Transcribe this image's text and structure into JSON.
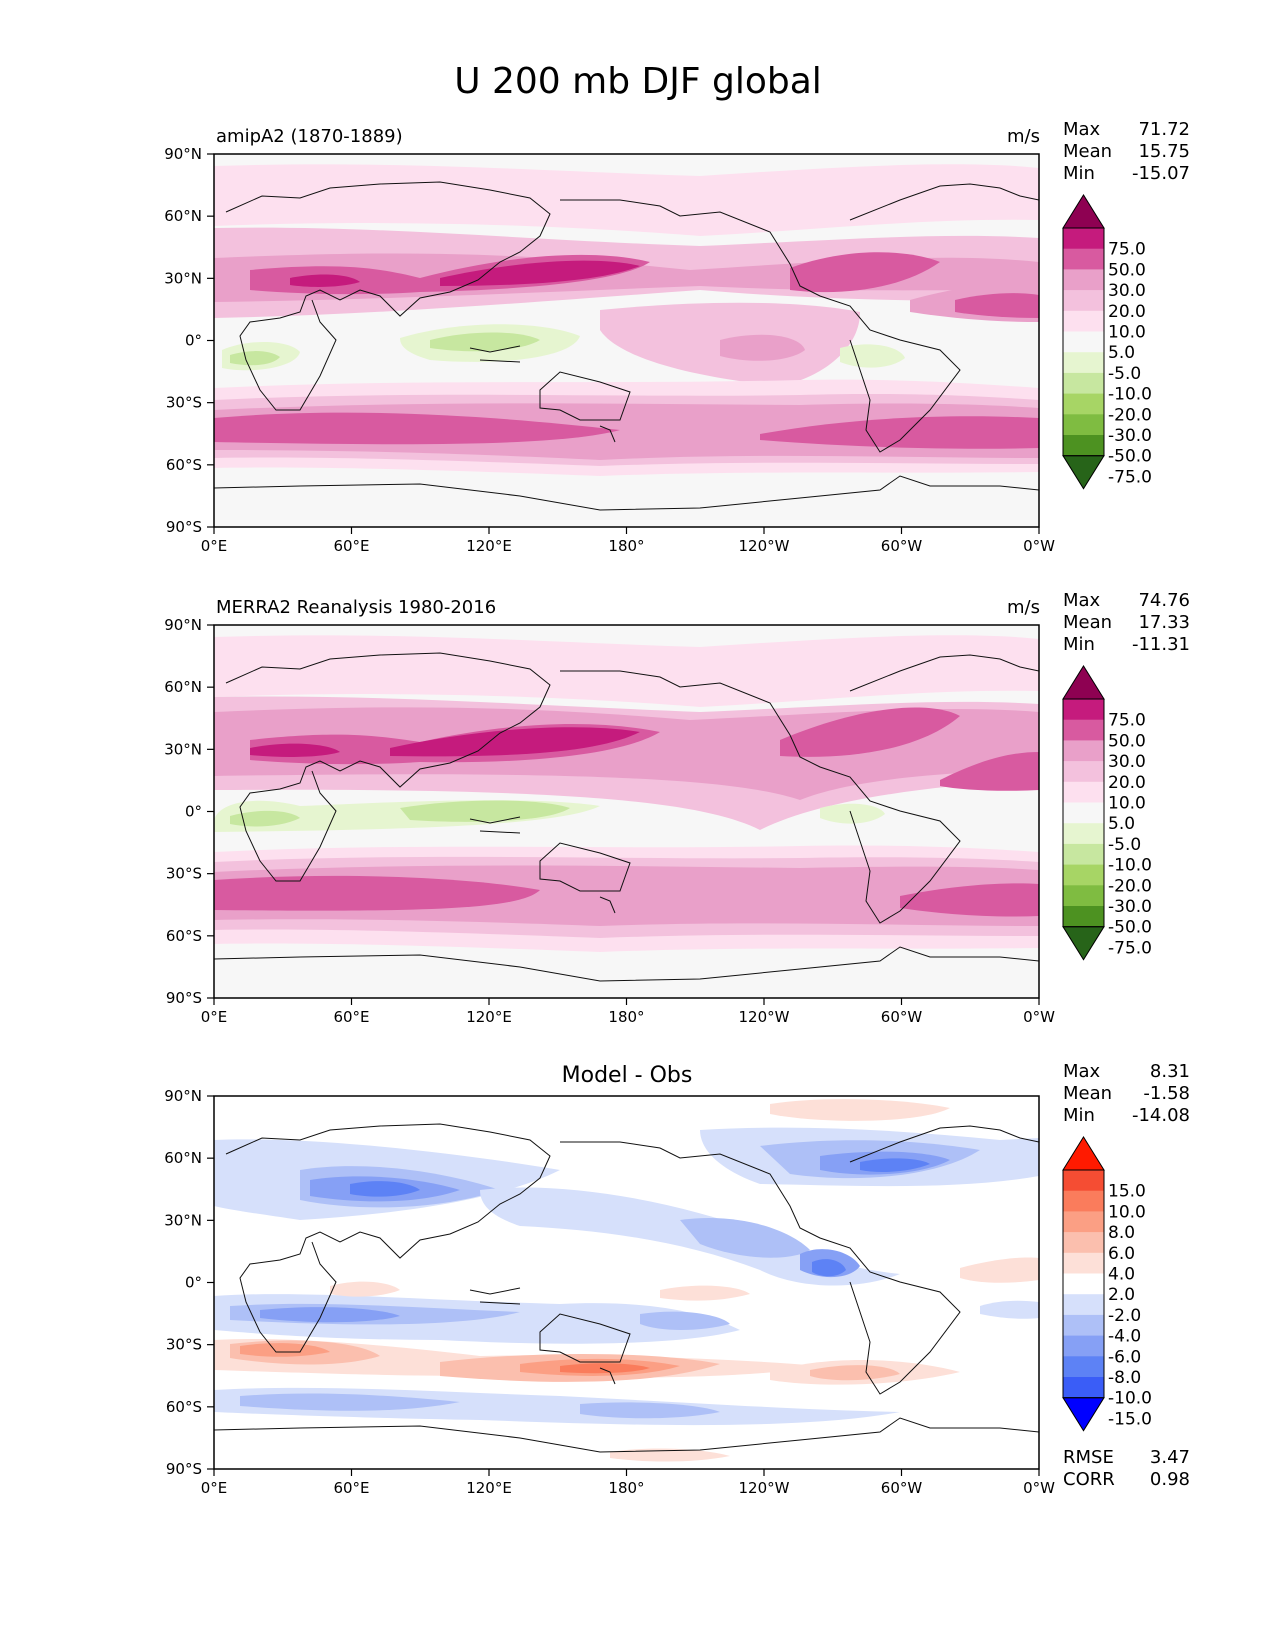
{
  "figure_title": "U 200 mb DJF global",
  "panels": [
    {
      "title_left": "amipA2 (1870-1889)",
      "title_right": "m/s",
      "stats": {
        "max_label": "Max",
        "max": "71.72",
        "mean_label": "Mean",
        "mean": "15.75",
        "min_label": "Min",
        "min": "-15.07"
      },
      "colorbar_labels": [
        "75.0",
        "50.0",
        "30.0",
        "20.0",
        "10.0",
        "5.0",
        "-5.0",
        "-10.0",
        "-20.0",
        "-30.0",
        "-50.0",
        "-75.0"
      ]
    },
    {
      "title_left": "MERRA2 Reanalysis 1980-2016",
      "title_right": "m/s",
      "stats": {
        "max_label": "Max",
        "max": "74.76",
        "mean_label": "Mean",
        "mean": "17.33",
        "min_label": "Min",
        "min": "-11.31"
      },
      "colorbar_labels": [
        "75.0",
        "50.0",
        "30.0",
        "20.0",
        "10.0",
        "5.0",
        "-5.0",
        "-10.0",
        "-20.0",
        "-30.0",
        "-50.0",
        "-75.0"
      ]
    },
    {
      "title_center": "Model - Obs",
      "stats": {
        "max_label": "Max",
        "max": "8.31",
        "mean_label": "Mean",
        "mean": "-1.58",
        "min_label": "Min",
        "min": "-14.08"
      },
      "colorbar_labels": [
        "15.0",
        "10.0",
        "8.0",
        "6.0",
        "4.0",
        "2.0",
        "-2.0",
        "-4.0",
        "-6.0",
        "-8.0",
        "-10.0",
        "-15.0"
      ],
      "extra_stats": {
        "rmse_label": "RMSE",
        "rmse": "3.47",
        "corr_label": "CORR",
        "corr": "0.98"
      }
    }
  ],
  "axes": {
    "lat_ticks": [
      "90°N",
      "60°N",
      "30°N",
      "0°",
      "30°S",
      "60°S",
      "90°S"
    ],
    "lon_ticks": [
      "0°E",
      "60°E",
      "120°E",
      "180°",
      "120°W",
      "60°W",
      "0°W"
    ]
  },
  "colors": {
    "mean_field": [
      "#276419",
      "#4d9221",
      "#7fbc41",
      "#a7d565",
      "#c7e7a0",
      "#e6f5d0",
      "#f7f7f7",
      "#fde0ef",
      "#f3c1dd",
      "#e9a0c9",
      "#d85aa0",
      "#c51b7d",
      "#8e0152"
    ],
    "difference": [
      "#0000ff",
      "#3a5df7",
      "#5d82f5",
      "#86a0f5",
      "#aec0f7",
      "#d6e0fb",
      "#ffffff",
      "#fde0d8",
      "#fbbfae",
      "#fb9f84",
      "#fa7c5c",
      "#f54d33",
      "#ff1a00"
    ]
  }
}
